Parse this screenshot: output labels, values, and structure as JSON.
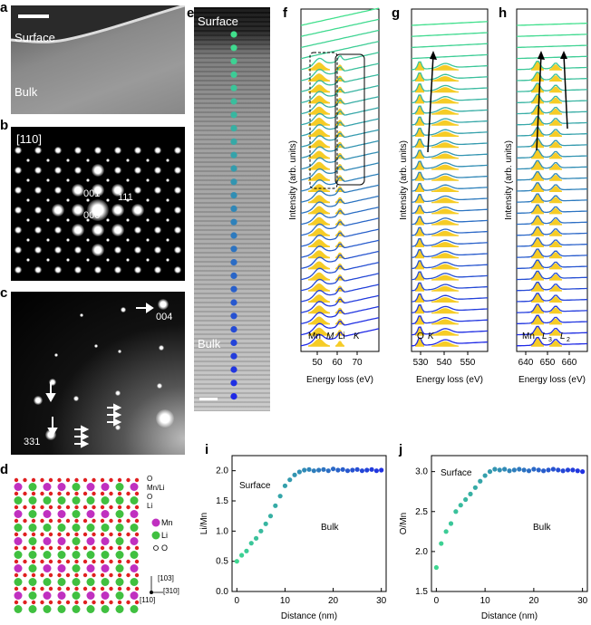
{
  "panels": {
    "a": {
      "label": "a",
      "surface": "Surface",
      "bulk": "Bulk"
    },
    "b": {
      "label": "b",
      "zone": "[110]",
      "spots": [
        "001",
        "111",
        "000"
      ]
    },
    "c": {
      "label": "c",
      "spots": [
        "004",
        "331"
      ]
    },
    "d": {
      "label": "d",
      "row_labels": [
        "O",
        "Mn/Li",
        "O",
        "Li"
      ],
      "legend": [
        "Mn",
        "Li",
        "O"
      ],
      "axes": [
        "[103]",
        "[310]",
        "[110]"
      ]
    },
    "e": {
      "label": "e",
      "surface": "Surface",
      "bulk": "Bulk"
    },
    "f": {
      "label": "f",
      "xlabel": "Energy loss (eV)",
      "ylabel": "Intensity (arb. units)",
      "ticks": [
        "50",
        "60",
        "70"
      ],
      "peaks": [
        "Mn",
        "M",
        "Li",
        "K"
      ]
    },
    "g": {
      "label": "g",
      "xlabel": "Energy loss (eV)",
      "ylabel": "Intensity (arb. units)",
      "ticks": [
        "530",
        "540",
        "550"
      ],
      "peaks": [
        "O",
        "K"
      ]
    },
    "h": {
      "label": "h",
      "xlabel": "Energy loss (eV)",
      "ylabel": "Intensity (arb. units)",
      "ticks": [
        "640",
        "650",
        "660"
      ],
      "peaks": [
        "Mn",
        "L",
        "3",
        "L",
        "2"
      ]
    },
    "i": {
      "label": "i",
      "xlabel": "Distance (nm)",
      "ylabel": "Li/Mn",
      "surface": "Surface",
      "bulk": "Bulk",
      "yticks": [
        "0.0",
        "0.5",
        "1.0",
        "1.5",
        "2.0"
      ],
      "xticks": [
        "0",
        "10",
        "20",
        "30"
      ]
    },
    "j": {
      "label": "j",
      "xlabel": "Distance (nm)",
      "ylabel": "O/Mn",
      "surface": "Surface",
      "bulk": "Bulk",
      "yticks": [
        "1.5",
        "2.0",
        "2.5",
        "3.0"
      ],
      "xticks": [
        "0",
        "10",
        "20",
        "30"
      ]
    }
  },
  "chart_data": [
    {
      "type": "scatter",
      "title": "i",
      "xlabel": "Distance (nm)",
      "ylabel": "Li/Mn",
      "xlim": [
        -1,
        31
      ],
      "ylim": [
        0,
        2.25
      ],
      "x": [
        0,
        1,
        2,
        3,
        4,
        5,
        6,
        7,
        8,
        9,
        10,
        11,
        12,
        13,
        14,
        15,
        16,
        17,
        18,
        19,
        20,
        21,
        22,
        23,
        24,
        25,
        26,
        27,
        28,
        29,
        30
      ],
      "y": [
        0.5,
        0.6,
        0.67,
        0.8,
        0.88,
        1.0,
        1.12,
        1.25,
        1.42,
        1.58,
        1.75,
        1.85,
        1.93,
        1.98,
        2.01,
        2.02,
        2.0,
        2.01,
        2.02,
        2.0,
        2.03,
        2.01,
        2.02,
        2.0,
        2.01,
        2.02,
        2.0,
        2.01,
        2.02,
        2.0,
        2.01
      ]
    },
    {
      "type": "scatter",
      "title": "j",
      "xlabel": "Distance (nm)",
      "ylabel": "O/Mn",
      "xlim": [
        -1,
        31
      ],
      "ylim": [
        1.5,
        3.2
      ],
      "x": [
        0,
        1,
        2,
        3,
        4,
        5,
        6,
        7,
        8,
        9,
        10,
        11,
        12,
        13,
        14,
        15,
        16,
        17,
        18,
        19,
        20,
        21,
        22,
        23,
        24,
        25,
        26,
        27,
        28,
        29,
        30
      ],
      "y": [
        1.8,
        2.1,
        2.25,
        2.35,
        2.5,
        2.58,
        2.65,
        2.72,
        2.8,
        2.88,
        2.95,
        3.0,
        3.03,
        3.02,
        3.03,
        3.01,
        3.02,
        3.03,
        3.02,
        3.01,
        3.03,
        3.02,
        3.01,
        3.02,
        3.03,
        3.02,
        3.01,
        3.02,
        3.02,
        3.01,
        3.0
      ]
    }
  ]
}
